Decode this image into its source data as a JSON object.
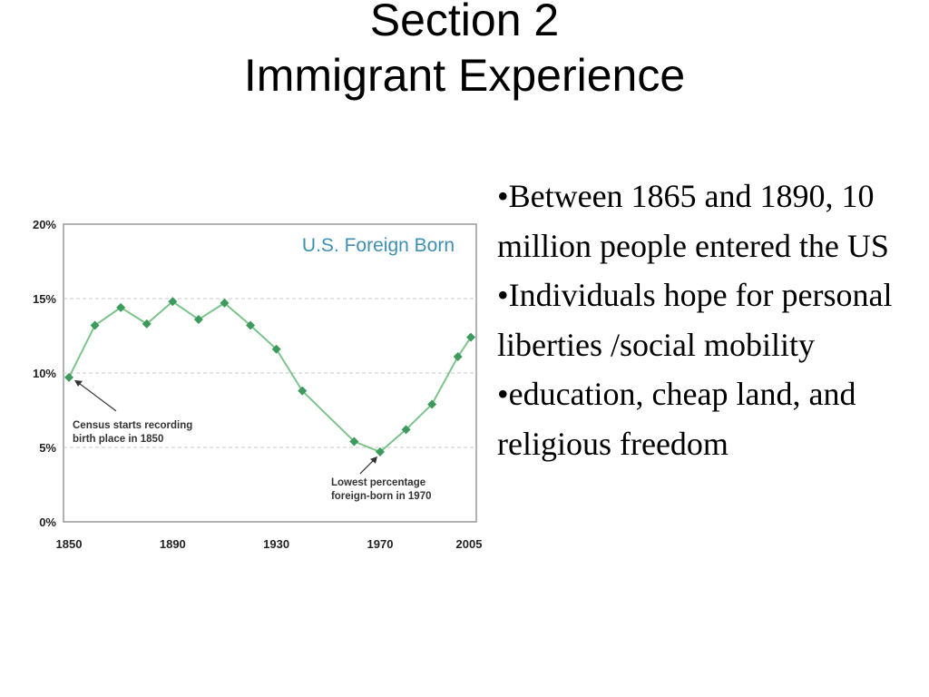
{
  "slide": {
    "title_line1": "Section 2",
    "title_line2": "Immigrant Experience"
  },
  "bullets": [
    "•Between 1865 and 1890, 10 million people entered the US",
    "•Individuals hope for personal liberties /social mobility",
    "•education, cheap land, and religious freedom"
  ],
  "chart_data": {
    "type": "line",
    "title": "U.S. Foreign Born",
    "x": [
      1850,
      1860,
      1870,
      1880,
      1890,
      1900,
      1910,
      1920,
      1930,
      1940,
      1960,
      1970,
      1980,
      1990,
      2000,
      2005
    ],
    "series": [
      {
        "values": [
          9.7,
          13.2,
          14.4,
          13.3,
          14.8,
          13.6,
          14.7,
          13.2,
          11.6,
          8.8,
          5.4,
          4.7,
          6.2,
          7.9,
          11.1,
          12.4
        ]
      }
    ],
    "ylim": [
      0,
      20
    ],
    "yticks": [
      "0%",
      "5%",
      "10%",
      "15%",
      "20%"
    ],
    "xticks": [
      "1850",
      "1890",
      "1930",
      "1970",
      "2005"
    ],
    "grid": true,
    "annotations": [
      {
        "line1": "Census starts recording",
        "line2": "birth place in 1850"
      },
      {
        "line1": "Lowest percentage",
        "line2": "foreign-born in 1970"
      }
    ],
    "colors": {
      "line": "#7cc48c",
      "marker": "#3d9a5c",
      "title": "#3f8fb0",
      "frame": "#999999",
      "grid": "#c8c8c8"
    }
  }
}
